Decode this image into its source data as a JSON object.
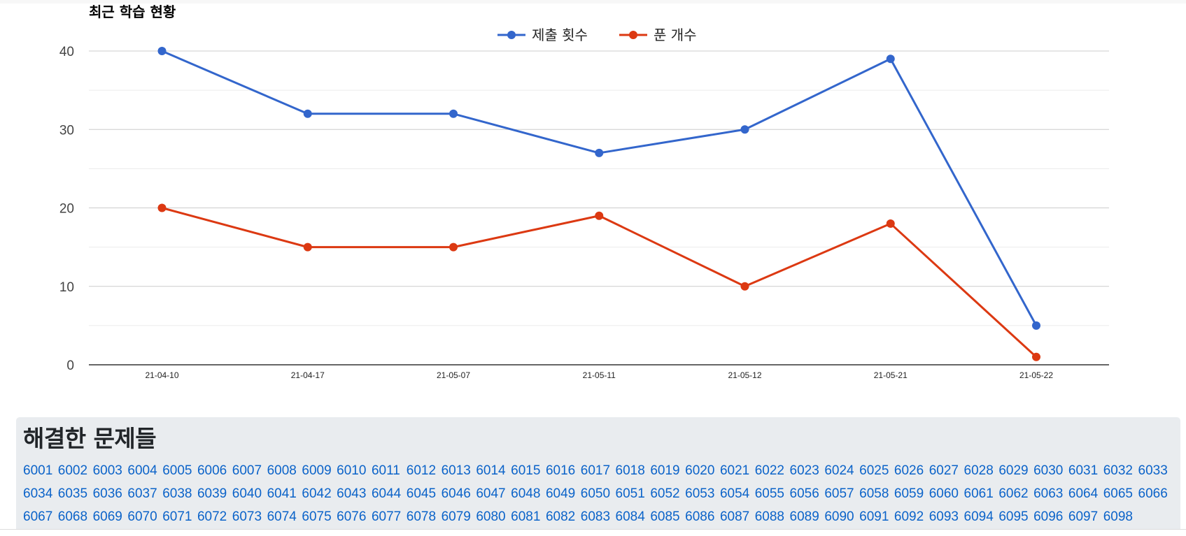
{
  "chart_data": {
    "type": "line",
    "title": "최근 학습 현황",
    "categories": [
      "21-04-10",
      "21-04-17",
      "21-05-07",
      "21-05-11",
      "21-05-12",
      "21-05-21",
      "21-05-22"
    ],
    "series": [
      {
        "name": "제출 횟수",
        "color": "#3366cc",
        "values": [
          40,
          32,
          32,
          27,
          30,
          39,
          5
        ]
      },
      {
        "name": "푼 개수",
        "color": "#dc3912",
        "values": [
          20,
          15,
          15,
          19,
          10,
          18,
          1
        ]
      }
    ],
    "ylim": [
      0,
      40
    ],
    "yticks": [
      0,
      10,
      20,
      30,
      40
    ],
    "grid": true,
    "legend": "top-center"
  },
  "solved": {
    "title": "해결한 문제들",
    "problems": [
      "6001",
      "6002",
      "6003",
      "6004",
      "6005",
      "6006",
      "6007",
      "6008",
      "6009",
      "6010",
      "6011",
      "6012",
      "6013",
      "6014",
      "6015",
      "6016",
      "6017",
      "6018",
      "6019",
      "6020",
      "6021",
      "6022",
      "6023",
      "6024",
      "6025",
      "6026",
      "6027",
      "6028",
      "6029",
      "6030",
      "6031",
      "6032",
      "6033",
      "6034",
      "6035",
      "6036",
      "6037",
      "6038",
      "6039",
      "6040",
      "6041",
      "6042",
      "6043",
      "6044",
      "6045",
      "6046",
      "6047",
      "6048",
      "6049",
      "6050",
      "6051",
      "6052",
      "6053",
      "6054",
      "6055",
      "6056",
      "6057",
      "6058",
      "6059",
      "6060",
      "6061",
      "6062",
      "6063",
      "6064",
      "6065",
      "6066",
      "6067",
      "6068",
      "6069",
      "6070",
      "6071",
      "6072",
      "6073",
      "6074",
      "6075",
      "6076",
      "6077",
      "6078",
      "6079",
      "6080",
      "6081",
      "6082",
      "6083",
      "6084",
      "6085",
      "6086",
      "6087",
      "6088",
      "6089",
      "6090",
      "6091",
      "6092",
      "6093",
      "6094",
      "6095",
      "6096",
      "6097",
      "6098"
    ]
  }
}
